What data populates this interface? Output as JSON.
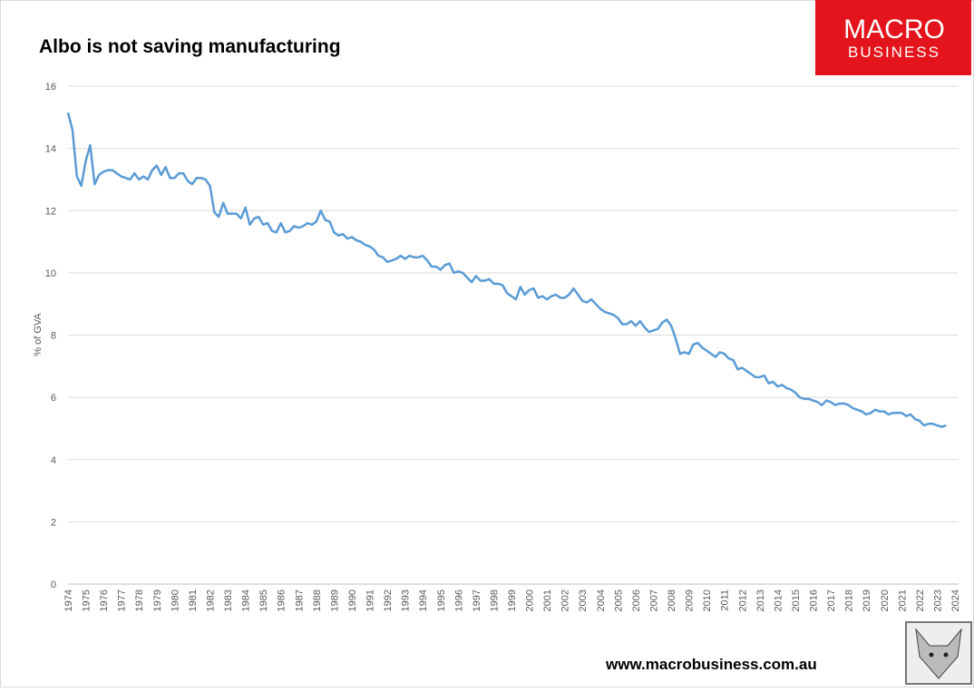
{
  "chart_data": {
    "type": "line",
    "title": "Albo is not saving manufacturing",
    "y_label": "% of GVA",
    "color": "#5b9bd5",
    "grid": true,
    "ylim": [
      0,
      16
    ],
    "yticks": [
      0,
      2,
      4,
      6,
      8,
      10,
      12,
      14,
      16
    ],
    "categories": [
      "1974",
      null,
      null,
      null,
      "1975",
      null,
      null,
      null,
      "1976",
      null,
      null,
      null,
      "1977",
      null,
      null,
      null,
      "1978",
      null,
      null,
      null,
      "1979",
      null,
      null,
      null,
      "1980",
      null,
      null,
      null,
      "1981",
      null,
      null,
      null,
      "1982",
      null,
      null,
      null,
      "1983",
      null,
      null,
      null,
      "1984",
      null,
      null,
      null,
      "1985",
      null,
      null,
      null,
      "1986",
      null,
      null,
      null,
      "1987",
      null,
      null,
      null,
      "1988",
      null,
      null,
      null,
      "1989",
      null,
      null,
      null,
      "1990",
      null,
      null,
      null,
      "1991",
      null,
      null,
      null,
      "1992",
      null,
      null,
      null,
      "1993",
      null,
      null,
      null,
      "1994",
      null,
      null,
      null,
      "1995",
      null,
      null,
      null,
      "1996",
      null,
      null,
      null,
      "1997",
      null,
      null,
      null,
      "1998",
      null,
      null,
      null,
      "1999",
      null,
      null,
      null,
      "2000",
      null,
      null,
      null,
      "2001",
      null,
      null,
      null,
      "2002",
      null,
      null,
      null,
      "2003",
      null,
      null,
      null,
      "2004",
      null,
      null,
      null,
      "2005",
      null,
      null,
      null,
      "2006",
      null,
      null,
      null,
      "2007",
      null,
      null,
      null,
      "2008",
      null,
      null,
      null,
      "2009",
      null,
      null,
      null,
      "2010",
      null,
      null,
      null,
      "2011",
      null,
      null,
      null,
      "2012",
      null,
      null,
      null,
      "2013",
      null,
      null,
      null,
      "2014",
      null,
      null,
      null,
      "2015",
      null,
      null,
      null,
      "2016",
      null,
      null,
      null,
      "2017",
      null,
      null,
      null,
      "2018",
      null,
      null,
      null,
      "2019",
      null,
      null,
      null,
      "2020",
      null,
      null,
      null,
      "2021",
      null,
      null,
      null,
      "2022",
      null,
      null,
      null,
      "2023",
      null,
      null,
      null,
      "2024"
    ],
    "values": [
      15.15,
      14.6,
      13.1,
      12.8,
      13.6,
      14.1,
      12.85,
      13.15,
      13.25,
      13.3,
      13.3,
      13.2,
      13.1,
      13.05,
      13.0,
      13.2,
      13.0,
      13.1,
      13.0,
      13.3,
      13.45,
      13.15,
      13.4,
      13.05,
      13.05,
      13.2,
      13.2,
      12.95,
      12.85,
      13.05,
      13.05,
      13.0,
      12.8,
      11.95,
      11.8,
      12.25,
      11.9,
      11.9,
      11.9,
      11.75,
      12.1,
      11.55,
      11.75,
      11.8,
      11.55,
      11.6,
      11.35,
      11.3,
      11.6,
      11.3,
      11.35,
      11.5,
      11.45,
      11.5,
      11.6,
      11.55,
      11.65,
      12.0,
      11.7,
      11.65,
      11.3,
      11.2,
      11.25,
      11.1,
      11.15,
      11.05,
      11.0,
      10.9,
      10.85,
      10.75,
      10.55,
      10.5,
      10.35,
      10.4,
      10.45,
      10.55,
      10.45,
      10.55,
      10.5,
      10.5,
      10.55,
      10.4,
      10.2,
      10.2,
      10.1,
      10.25,
      10.3,
      10.0,
      10.05,
      10.0,
      9.85,
      9.7,
      9.9,
      9.75,
      9.75,
      9.8,
      9.65,
      9.65,
      9.6,
      9.35,
      9.25,
      9.15,
      9.55,
      9.3,
      9.45,
      9.5,
      9.2,
      9.25,
      9.15,
      9.25,
      9.3,
      9.2,
      9.2,
      9.3,
      9.5,
      9.3,
      9.1,
      9.05,
      9.15,
      9.0,
      8.85,
      8.75,
      8.7,
      8.65,
      8.55,
      8.35,
      8.35,
      8.45,
      8.3,
      8.45,
      8.25,
      8.1,
      8.15,
      8.2,
      8.4,
      8.5,
      8.3,
      7.9,
      7.4,
      7.45,
      7.4,
      7.7,
      7.75,
      7.6,
      7.5,
      7.4,
      7.3,
      7.45,
      7.4,
      7.25,
      7.2,
      6.9,
      6.95,
      6.85,
      6.75,
      6.65,
      6.65,
      6.7,
      6.45,
      6.5,
      6.35,
      6.4,
      6.3,
      6.25,
      6.15,
      6.0,
      5.95,
      5.95,
      5.9,
      5.85,
      5.75,
      5.9,
      5.85,
      5.75,
      5.8,
      5.8,
      5.75,
      5.65,
      5.6,
      5.55,
      5.45,
      5.5,
      5.6,
      5.55,
      5.55,
      5.45,
      5.5,
      5.5,
      5.5,
      5.4,
      5.45,
      5.3,
      5.25,
      5.1,
      5.15,
      5.15,
      5.1,
      5.05,
      5.1,
      null,
      null
    ]
  },
  "logo": {
    "line1": "MACRO",
    "line2": "BUSINESS"
  },
  "footer": "www.macrobusiness.com.au"
}
